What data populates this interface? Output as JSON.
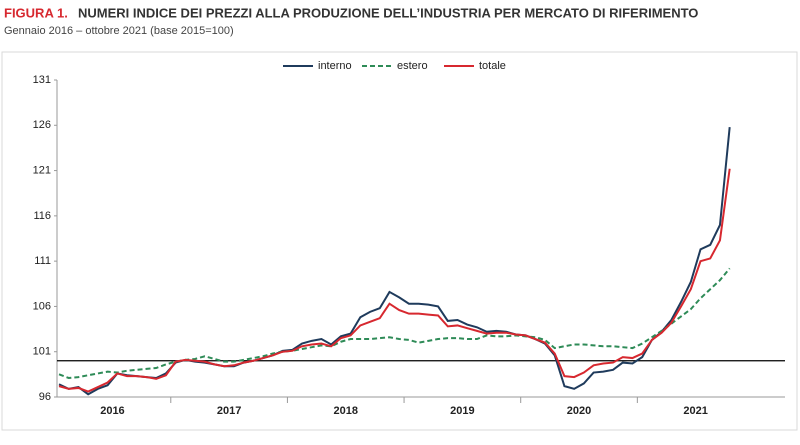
{
  "chart_data": {
    "type": "line",
    "title_label": "FIGURA 1.",
    "title": "NUMERI INDICE DEI PREZZI ALLA PRODUZIONE DELL’INDUSTRIA PER MERCATO DI RIFERIMENTO",
    "subtitle": "Gennaio 2016 – ottobre 2021 (base 2015=100)",
    "year_labels": [
      "2016",
      "2017",
      "2018",
      "2019",
      "2020",
      "2021"
    ],
    "ylim": [
      96,
      131
    ],
    "yticks": [
      96,
      101,
      106,
      111,
      116,
      121,
      126,
      131
    ],
    "reference_line": 100,
    "series": [
      {
        "name": "interno",
        "color": "#1f3b5c",
        "dash": false,
        "values": [
          97.4,
          96.9,
          97.1,
          96.3,
          96.9,
          97.3,
          98.6,
          98.4,
          98.3,
          98.2,
          98.1,
          98.6,
          99.8,
          100.1,
          99.9,
          99.8,
          99.6,
          99.4,
          99.4,
          99.8,
          100.0,
          100.3,
          100.6,
          101.1,
          101.2,
          101.9,
          102.2,
          102.4,
          101.8,
          102.7,
          103.0,
          104.8,
          105.4,
          105.8,
          107.6,
          107.0,
          106.3,
          106.3,
          106.2,
          106.0,
          104.4,
          104.5,
          104.0,
          103.7,
          103.2,
          103.3,
          103.2,
          102.9,
          102.8,
          102.4,
          101.9,
          100.6,
          97.2,
          96.9,
          97.5,
          98.7,
          98.8,
          99.0,
          99.8,
          99.7,
          100.4,
          102.3,
          103.2,
          104.5,
          106.5,
          108.7,
          112.3,
          112.8,
          115.0,
          125.8
        ]
      },
      {
        "name": "estero",
        "color": "#2e8b57",
        "dash": true,
        "values": [
          98.5,
          98.1,
          98.2,
          98.4,
          98.6,
          98.8,
          98.7,
          98.9,
          99.0,
          99.1,
          99.2,
          99.6,
          99.9,
          100.1,
          100.2,
          100.5,
          100.2,
          99.9,
          99.9,
          100.1,
          100.3,
          100.5,
          100.8,
          101.0,
          101.1,
          101.3,
          101.5,
          101.7,
          101.6,
          102.1,
          102.4,
          102.4,
          102.4,
          102.5,
          102.6,
          102.4,
          102.3,
          102.0,
          102.2,
          102.4,
          102.5,
          102.5,
          102.4,
          102.4,
          102.8,
          102.7,
          102.7,
          102.8,
          102.7,
          102.6,
          102.3,
          101.4,
          101.6,
          101.8,
          101.8,
          101.7,
          101.6,
          101.6,
          101.5,
          101.4,
          101.9,
          102.6,
          103.3,
          104.1,
          104.9,
          105.7,
          106.9,
          107.9,
          108.9,
          110.2
        ]
      },
      {
        "name": "totale",
        "color": "#d7282f",
        "dash": false,
        "values": [
          97.2,
          96.9,
          97.0,
          96.6,
          97.1,
          97.6,
          98.6,
          98.3,
          98.3,
          98.2,
          98.0,
          98.4,
          99.9,
          100.1,
          100.0,
          99.9,
          99.6,
          99.4,
          99.5,
          99.8,
          100.0,
          100.3,
          100.6,
          101.0,
          101.1,
          101.6,
          101.8,
          101.9,
          101.6,
          102.5,
          102.8,
          103.9,
          104.3,
          104.7,
          106.3,
          105.6,
          105.2,
          105.2,
          105.1,
          105.0,
          103.8,
          103.9,
          103.6,
          103.3,
          103.0,
          103.1,
          103.1,
          102.9,
          102.8,
          102.4,
          102.0,
          100.8,
          98.3,
          98.2,
          98.7,
          99.5,
          99.7,
          99.8,
          100.4,
          100.3,
          100.8,
          102.3,
          103.1,
          104.2,
          106.0,
          107.9,
          111.0,
          111.3,
          113.3,
          121.2
        ]
      }
    ]
  }
}
